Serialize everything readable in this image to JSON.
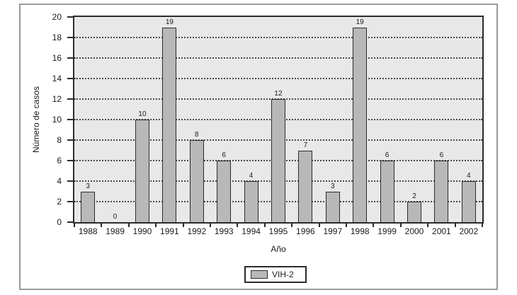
{
  "chart_data": {
    "type": "bar",
    "categories": [
      "1988",
      "1989",
      "1990",
      "1991",
      "1992",
      "1993",
      "1994",
      "1995",
      "1996",
      "1997",
      "1998",
      "1999",
      "2000",
      "2001",
      "2002"
    ],
    "series": [
      {
        "name": "VIH-2",
        "values": [
          3,
          0,
          10,
          19,
          8,
          6,
          4,
          12,
          7,
          3,
          19,
          6,
          2,
          6,
          4
        ]
      }
    ],
    "title": "",
    "xlabel": "Año",
    "ylabel": "Número de casos",
    "ylim": [
      0,
      20
    ],
    "ytick_step": 2,
    "grid": "horizontal-dotted",
    "value_labels": true,
    "legend_position": "bottom-center",
    "colors": {
      "bar_fill": "#b8b8b8",
      "bar_border": "#2b2b2b",
      "plot_background": "#e8e8e8",
      "grid_dots": "#4a4a4a",
      "axis": "#2b2b2b",
      "figure_frame": "#999999",
      "background": "#ffffff"
    }
  }
}
